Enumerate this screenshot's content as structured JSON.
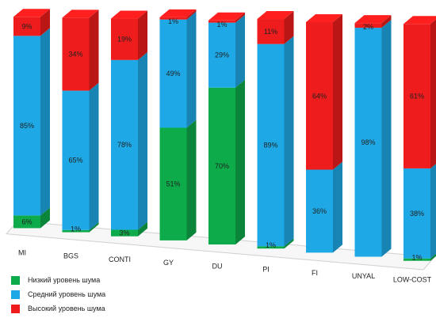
{
  "chart_data": {
    "type": "bar",
    "stacked": true,
    "three_d": true,
    "categories": [
      "MI",
      "BGS",
      "CONTI",
      "GY",
      "DU",
      "PI",
      "FI",
      "UNYAL",
      "LOW-COST"
    ],
    "series": [
      {
        "name": "Низкий уровень шума",
        "color": "#0dab4a",
        "values": [
          6,
          1,
          3,
          51,
          70,
          1,
          0,
          0,
          1
        ]
      },
      {
        "name": "Средний уровень шума",
        "color": "#1ea9e6",
        "values": [
          85,
          65,
          78,
          49,
          29,
          89,
          36,
          98,
          38
        ]
      },
      {
        "name": "Высокий уровень шума",
        "color": "#ee1c1c",
        "values": [
          9,
          34,
          19,
          1,
          1,
          11,
          64,
          2,
          61
        ]
      }
    ],
    "labels": [
      [
        "6%",
        "85%",
        "9%"
      ],
      [
        "1%",
        "65%",
        "34%"
      ],
      [
        "3%",
        "78%",
        "19%"
      ],
      [
        "51%",
        "49%",
        "1%"
      ],
      [
        "70%",
        "29%",
        "1%"
      ],
      [
        "1%",
        "89%",
        "11%"
      ],
      [
        "",
        "36%",
        "64%"
      ],
      [
        "",
        "98%",
        "2%"
      ],
      [
        "1%",
        "38%",
        "61%"
      ]
    ],
    "ylim": [
      0,
      100
    ],
    "legend_position": "bottom-left",
    "grid": false
  }
}
